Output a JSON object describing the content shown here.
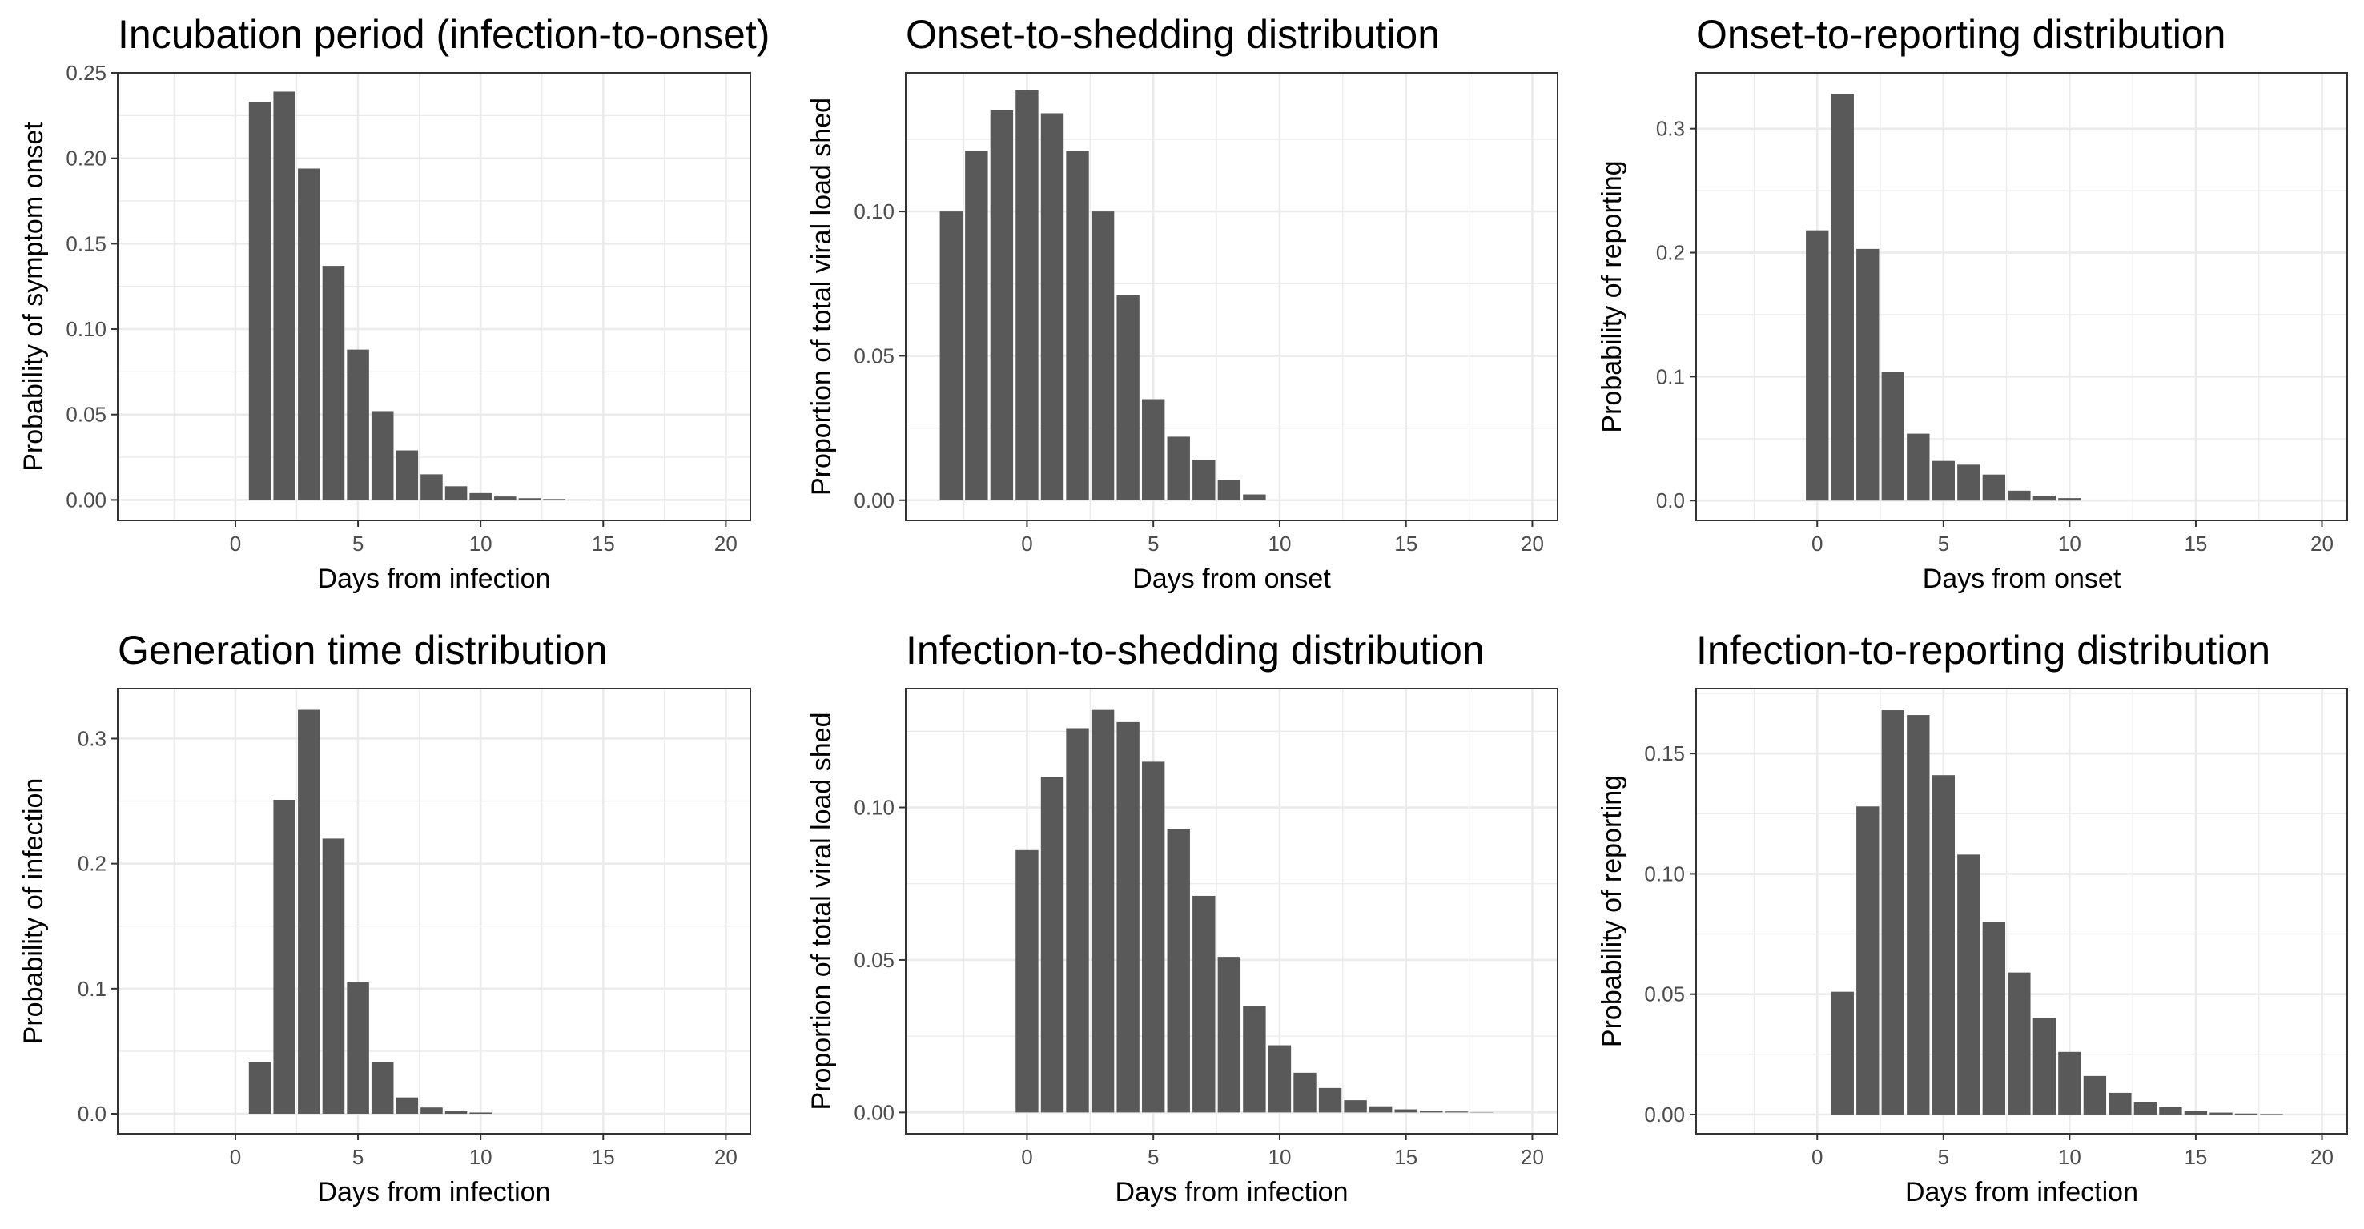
{
  "chart_data": [
    {
      "type": "bar",
      "title": "Incubation period (infection-to-onset)",
      "xlabel": "Days from infection",
      "ylabel": "Probability of symptom onset",
      "xlim": [
        -4.8,
        21
      ],
      "ylim": [
        -0.012,
        0.25
      ],
      "xticks": [
        0,
        5,
        10,
        15,
        20
      ],
      "yticks": [
        0.0,
        0.05,
        0.1,
        0.15,
        0.2,
        0.25
      ],
      "ytick_labels": [
        "0.00",
        "0.05",
        "0.10",
        "0.15",
        "0.20",
        "0.25"
      ],
      "x": [
        1,
        2,
        3,
        4,
        5,
        6,
        7,
        8,
        9,
        10,
        11,
        12,
        13,
        14
      ],
      "values": [
        0.233,
        0.239,
        0.194,
        0.137,
        0.088,
        0.052,
        0.029,
        0.015,
        0.008,
        0.004,
        0.002,
        0.001,
        0.0005,
        0.0002
      ],
      "bar_color": "#595959",
      "grid": true
    },
    {
      "type": "bar",
      "title": "Onset-to-shedding distribution",
      "xlabel": "Days from onset",
      "ylabel": "Proportion of total viral load shed",
      "xlim": [
        -4.8,
        21
      ],
      "ylim": [
        -0.007,
        0.148
      ],
      "xticks": [
        0,
        5,
        10,
        15,
        20
      ],
      "yticks": [
        0.0,
        0.05,
        0.1
      ],
      "ytick_labels": [
        "0.00",
        "0.05",
        "0.10"
      ],
      "x": [
        -3,
        -2,
        -1,
        0,
        1,
        2,
        3,
        4,
        5,
        6,
        7,
        8,
        9
      ],
      "values": [
        0.1,
        0.121,
        0.135,
        0.142,
        0.134,
        0.121,
        0.1,
        0.071,
        0.035,
        0.022,
        0.014,
        0.007,
        0.002
      ],
      "bar_color": "#595959",
      "grid": true
    },
    {
      "type": "bar",
      "title": "Onset-to-reporting distribution",
      "xlabel": "Days from onset",
      "ylabel": "Probability of reporting",
      "xlim": [
        -4.8,
        21
      ],
      "ylim": [
        -0.016,
        0.345
      ],
      "xticks": [
        0,
        5,
        10,
        15,
        20
      ],
      "yticks": [
        0.0,
        0.1,
        0.2,
        0.3
      ],
      "ytick_labels": [
        "0.0",
        "0.1",
        "0.2",
        "0.3"
      ],
      "x": [
        0,
        1,
        2,
        3,
        4,
        5,
        6,
        7,
        8,
        9,
        10
      ],
      "values": [
        0.218,
        0.328,
        0.203,
        0.104,
        0.054,
        0.032,
        0.029,
        0.021,
        0.008,
        0.004,
        0.002
      ],
      "bar_color": "#595959",
      "grid": true
    },
    {
      "type": "bar",
      "title": "Generation time distribution",
      "xlabel": "Days from infection",
      "ylabel": "Probability of infection",
      "xlim": [
        -4.8,
        21
      ],
      "ylim": [
        -0.016,
        0.34
      ],
      "xticks": [
        0,
        5,
        10,
        15,
        20
      ],
      "yticks": [
        0.0,
        0.1,
        0.2,
        0.3
      ],
      "ytick_labels": [
        "0.0",
        "0.1",
        "0.2",
        "0.3"
      ],
      "x": [
        1,
        2,
        3,
        4,
        5,
        6,
        7,
        8,
        9,
        10
      ],
      "values": [
        0.041,
        0.251,
        0.323,
        0.22,
        0.105,
        0.041,
        0.013,
        0.005,
        0.002,
        0.001
      ],
      "bar_color": "#595959",
      "grid": true
    },
    {
      "type": "bar",
      "title": "Infection-to-shedding distribution",
      "xlabel": "Days from infection",
      "ylabel": "Proportion of total viral load shed",
      "xlim": [
        -4.8,
        21
      ],
      "ylim": [
        -0.007,
        0.139
      ],
      "xticks": [
        0,
        5,
        10,
        15,
        20
      ],
      "yticks": [
        0.0,
        0.05,
        0.1
      ],
      "ytick_labels": [
        "0.00",
        "0.05",
        "0.10"
      ],
      "x": [
        0,
        1,
        2,
        3,
        4,
        5,
        6,
        7,
        8,
        9,
        10,
        11,
        12,
        13,
        14,
        15,
        16,
        17,
        18
      ],
      "values": [
        0.086,
        0.11,
        0.126,
        0.132,
        0.128,
        0.115,
        0.093,
        0.071,
        0.051,
        0.035,
        0.022,
        0.013,
        0.008,
        0.004,
        0.002,
        0.001,
        0.0006,
        0.0003,
        0.0001
      ],
      "bar_color": "#595959",
      "grid": true
    },
    {
      "type": "bar",
      "title": "Infection-to-reporting distribution",
      "xlabel": "Days from infection",
      "ylabel": "Probability of reporting",
      "xlim": [
        -4.8,
        21
      ],
      "ylim": [
        -0.008,
        0.177
      ],
      "xticks": [
        0,
        5,
        10,
        15,
        20
      ],
      "yticks": [
        0.0,
        0.05,
        0.1,
        0.15
      ],
      "ytick_labels": [
        "0.00",
        "0.05",
        "0.10",
        "0.15"
      ],
      "x": [
        1,
        2,
        3,
        4,
        5,
        6,
        7,
        8,
        9,
        10,
        11,
        12,
        13,
        14,
        15,
        16,
        17,
        18
      ],
      "values": [
        0.051,
        0.128,
        0.168,
        0.166,
        0.141,
        0.108,
        0.08,
        0.059,
        0.04,
        0.026,
        0.016,
        0.009,
        0.005,
        0.003,
        0.0015,
        0.0008,
        0.0004,
        0.0002
      ],
      "bar_color": "#595959",
      "grid": true
    }
  ]
}
